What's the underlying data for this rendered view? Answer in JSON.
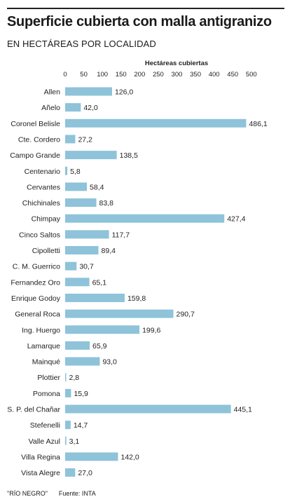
{
  "header": {
    "title": "Superficie cubierta con malla antigranizo",
    "subtitle": "EN HECTÁREAS POR LOCALIDAD"
  },
  "footer": {
    "region": "\"RÍO NEGRO\"",
    "source": "Fuente: INTA"
  },
  "colors": {
    "bar": "#8ec3d9",
    "text": "#222222"
  },
  "chart_data": {
    "type": "bar",
    "orientation": "horizontal",
    "title": "Superficie cubierta con malla antigranizo",
    "subtitle": "EN HECTÁREAS POR LOCALIDAD",
    "xlabel": "Hectáreas cubiertas",
    "ylabel": "",
    "xlim": [
      0,
      500
    ],
    "xticks": [
      0,
      50,
      100,
      150,
      200,
      250,
      300,
      350,
      400,
      450,
      500
    ],
    "xtick_labels": [
      "0",
      "50",
      "100",
      "150",
      "200",
      "250",
      "300",
      "350",
      "400",
      "450",
      "500"
    ],
    "grid": false,
    "categories": [
      "Allen",
      "Añelo",
      "Coronel Belisle",
      "Cte. Cordero",
      "Campo Grande",
      "Centenario",
      "Cervantes",
      "Chichinales",
      "Chimpay",
      "Cinco Saltos",
      "Cipolletti",
      "C. M. Guerrico",
      "Fernandez Oro",
      "Enrique Godoy",
      "General Roca",
      "Ing. Huergo",
      "Lamarque",
      "Mainqué",
      "Plottier",
      "Pomona",
      "S. P. del Chañar",
      "Stefenelli",
      "Valle Azul",
      "Villa Regina",
      "Vista Alegre"
    ],
    "values": [
      126.0,
      42.0,
      486.1,
      27.2,
      138.5,
      5.8,
      58.4,
      83.8,
      427.4,
      117.7,
      89.4,
      30.7,
      65.1,
      159.8,
      290.7,
      199.6,
      65.9,
      93.0,
      2.8,
      15.9,
      445.1,
      14.7,
      3.1,
      142.0,
      27.0
    ],
    "value_labels": [
      "126,0",
      "42,0",
      "486,1",
      "27,2",
      "138,5",
      "5,8",
      "58,4",
      "83,8",
      "427,4",
      "117,7",
      "89,4",
      "30,7",
      "65,1",
      "159,8",
      "290,7",
      "199,6",
      "65,9",
      "93,0",
      "2,8",
      "15,9",
      "445,1",
      "14,7",
      "3,1",
      "142,0",
      "27,0"
    ]
  }
}
